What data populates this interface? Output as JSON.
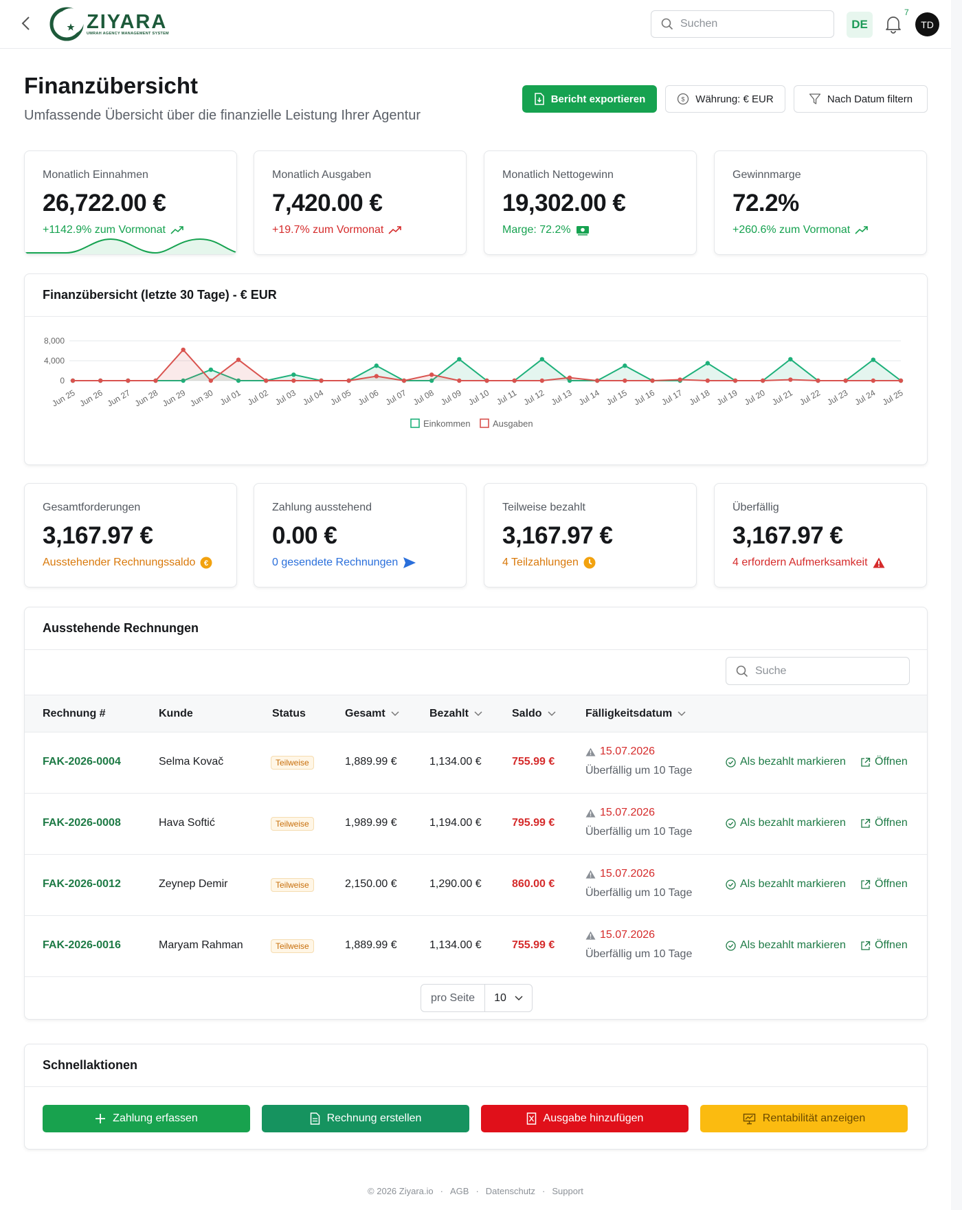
{
  "header": {
    "logo_name": "ZIYARA",
    "logo_sub": "UMRAH AGENCY MANAGEMENT SYSTEM",
    "search_placeholder": "Suchen",
    "lang": "DE",
    "notifications": "7",
    "avatar": "TD"
  },
  "page": {
    "title": "Finanzübersicht",
    "subtitle": "Umfassende Übersicht über die finanzielle Leistung Ihrer Agentur",
    "export_label": "Bericht exportieren",
    "currency_label": "Währung: € EUR",
    "filter_label": "Nach Datum filtern"
  },
  "kpis": [
    {
      "label": "Monatlich Einnahmen",
      "value": "26,722.00 €",
      "sub": "+1142.9% zum Vormonat"
    },
    {
      "label": "Monatlich Ausgaben",
      "value": "7,420.00 €",
      "sub": "+19.7% zum Vormonat"
    },
    {
      "label": "Monatlich Nettogewinn",
      "value": "19,302.00 €",
      "sub": "Marge: 72.2%"
    },
    {
      "label": "Gewinnmarge",
      "value": "72.2%",
      "sub": "+260.6% zum Vormonat"
    }
  ],
  "chart_card": {
    "title": "Finanzübersicht (letzte 30 Tage) - € EUR"
  },
  "chart_data": {
    "type": "area",
    "title": "Finanzübersicht (letzte 30 Tage) - € EUR",
    "categories": [
      "Jun 25",
      "Jun 26",
      "Jun 27",
      "Jun 28",
      "Jun 29",
      "Jun 30",
      "Jul 01",
      "Jul 02",
      "Jul 03",
      "Jul 04",
      "Jul 05",
      "Jul 06",
      "Jul 07",
      "Jul 08",
      "Jul 09",
      "Jul 10",
      "Jul 11",
      "Jul 12",
      "Jul 13",
      "Jul 14",
      "Jul 15",
      "Jul 16",
      "Jul 17",
      "Jul 18",
      "Jul 19",
      "Jul 20",
      "Jul 21",
      "Jul 22",
      "Jul 23",
      "Jul 24",
      "Jul 25"
    ],
    "yticks": [
      0,
      4000,
      8000
    ],
    "ytick_labels": [
      "0",
      "4,000",
      "8,000"
    ],
    "ylim": [
      0,
      8000
    ],
    "legend_position": "bottom",
    "grid": true,
    "series": [
      {
        "name": "Einkommen",
        "color": "#1db07a",
        "values": [
          0,
          0,
          0,
          0,
          0,
          2200,
          0,
          0,
          1200,
          0,
          0,
          3000,
          0,
          0,
          4300,
          0,
          0,
          4300,
          0,
          0,
          3000,
          0,
          0,
          3500,
          0,
          0,
          4300,
          0,
          0,
          4200,
          0
        ]
      },
      {
        "name": "Ausgaben",
        "color": "#d9534f",
        "values": [
          0,
          0,
          0,
          0,
          6200,
          0,
          4200,
          0,
          0,
          0,
          0,
          900,
          0,
          1200,
          0,
          0,
          0,
          0,
          600,
          0,
          0,
          0,
          200,
          0,
          0,
          0,
          200,
          0,
          0,
          0,
          0
        ]
      }
    ]
  },
  "stats": [
    {
      "label": "Gesamtforderungen",
      "value": "3,167.97 €",
      "sub": "Ausstehender Rechnungssaldo"
    },
    {
      "label": "Zahlung ausstehend",
      "value": "0.00 €",
      "sub": "0 gesendete Rechnungen"
    },
    {
      "label": "Teilweise bezahlt",
      "value": "3,167.97 €",
      "sub": "4 Teilzahlungen"
    },
    {
      "label": "Überfällig",
      "value": "3,167.97 €",
      "sub": "4 erfordern Aufmerksamkeit"
    }
  ],
  "invoices": {
    "title": "Ausstehende Rechnungen",
    "search_placeholder": "Suche",
    "columns": [
      "Rechnung #",
      "Kunde",
      "Status",
      "Gesamt",
      "Bezahlt",
      "Saldo",
      "Fälligkeitsdatum"
    ],
    "rows": [
      {
        "id": "FAK-2026-0004",
        "customer": "Selma Kovač",
        "status": "Teilweise",
        "total": "1,889.99 €",
        "paid": "1,134.00 €",
        "balance": "755.99 €",
        "due": "15.07.2026",
        "note": "Überfällig um 10 Tage",
        "mark": "Als bezahlt markieren",
        "open": "Öffnen"
      },
      {
        "id": "FAK-2026-0008",
        "customer": "Hava Softić",
        "status": "Teilweise",
        "total": "1,989.99 €",
        "paid": "1,194.00 €",
        "balance": "795.99 €",
        "due": "15.07.2026",
        "note": "Überfällig um 10 Tage",
        "mark": "Als bezahlt markieren",
        "open": "Öffnen"
      },
      {
        "id": "FAK-2026-0012",
        "customer": "Zeynep Demir",
        "status": "Teilweise",
        "total": "2,150.00 €",
        "paid": "1,290.00 €",
        "balance": "860.00 €",
        "due": "15.07.2026",
        "note": "Überfällig um 10 Tage",
        "mark": "Als bezahlt markieren",
        "open": "Öffnen"
      },
      {
        "id": "FAK-2026-0016",
        "customer": "Maryam Rahman",
        "status": "Teilweise",
        "total": "1,889.99 €",
        "paid": "1,134.00 €",
        "balance": "755.99 €",
        "due": "15.07.2026",
        "note": "Überfällig um 10 Tage",
        "mark": "Als bezahlt markieren",
        "open": "Öffnen"
      }
    ],
    "per_page_label": "pro Seite",
    "per_page_value": "10"
  },
  "quick_actions": {
    "title": "Schnellaktionen",
    "buttons": [
      {
        "label": "Zahlung erfassen",
        "color": "#18a24e"
      },
      {
        "label": "Rechnung erstellen",
        "color": "#16935f"
      },
      {
        "label": "Ausgabe hinzufügen",
        "color": "#e0101a"
      },
      {
        "label": "Rentabilität anzeigen",
        "color": "#fbbb10"
      }
    ]
  },
  "footer": {
    "copyright": "© 2026 Ziyara.io",
    "links": [
      "AGB",
      "Datenschutz",
      "Support"
    ]
  }
}
